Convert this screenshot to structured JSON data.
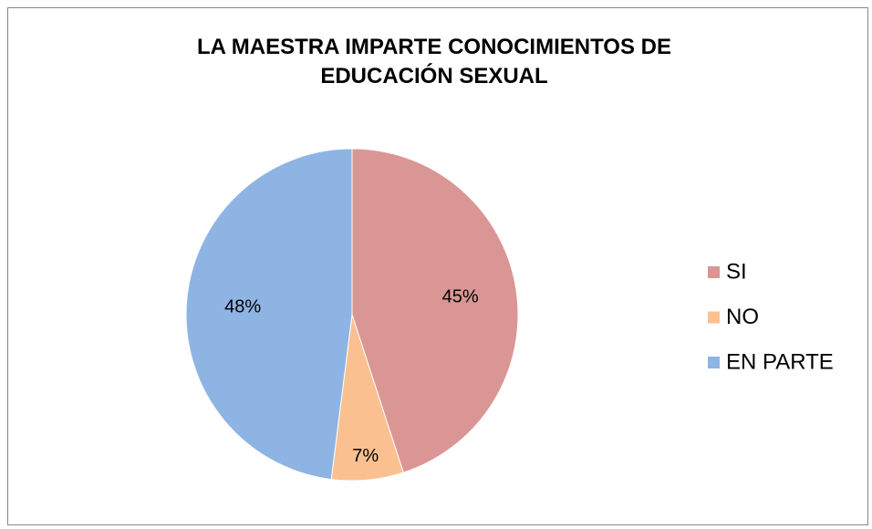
{
  "chart_data": {
    "type": "pie",
    "title": "LA MAESTRA IMPARTE CONOCIMIENTOS DE EDUCACIÓN SEXUAL",
    "categories": [
      "SI",
      "NO",
      "EN PARTE"
    ],
    "values": [
      45,
      7,
      48
    ],
    "value_labels": [
      "45%",
      "7%",
      "48%"
    ],
    "colors": [
      "#d99694",
      "#fac090",
      "#8eb4e3"
    ],
    "legend": "right"
  }
}
